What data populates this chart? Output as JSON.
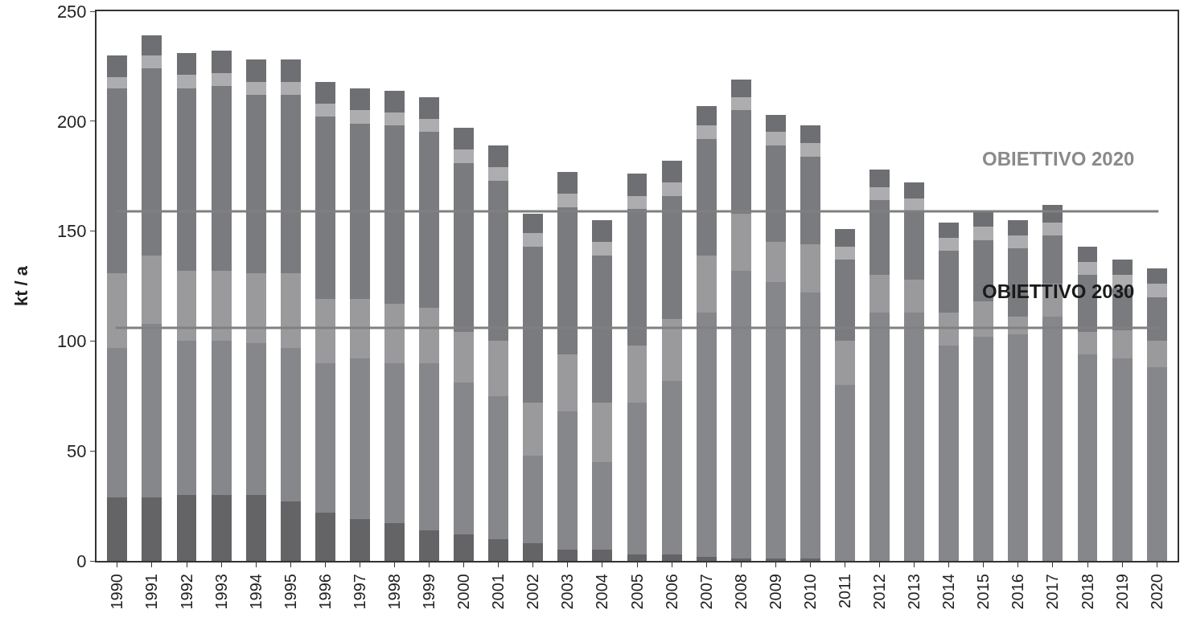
{
  "chart_data": {
    "type": "bar",
    "stacked": true,
    "ylabel": "kt / a",
    "categories": [
      "1990",
      "1991",
      "1992",
      "1993",
      "1994",
      "1995",
      "1996",
      "1997",
      "1998",
      "1999",
      "2000",
      "2001",
      "2002",
      "2003",
      "2004",
      "2005",
      "2006",
      "2007",
      "2008",
      "2009",
      "2010",
      "2011",
      "2012",
      "2013",
      "2014",
      "2015",
      "2016",
      "2017",
      "2018",
      "2019",
      "2020"
    ],
    "series": [
      {
        "color": "#646466",
        "values": [
          29,
          29,
          30,
          30,
          30,
          27,
          22,
          19,
          17,
          14,
          12,
          10,
          8,
          5,
          5,
          3,
          3,
          2,
          1,
          1,
          1,
          0,
          0,
          0,
          0,
          0,
          0,
          0,
          0,
          0,
          0
        ]
      },
      {
        "color": "#86878b",
        "values": [
          68,
          79,
          70,
          70,
          69,
          70,
          68,
          73,
          73,
          76,
          69,
          65,
          40,
          63,
          40,
          69,
          79,
          111,
          131,
          126,
          121,
          80,
          113,
          113,
          98,
          102,
          103,
          111,
          94,
          92,
          88
        ]
      },
      {
        "color": "#9a9a9d",
        "values": [
          34,
          31,
          32,
          32,
          32,
          34,
          29,
          27,
          27,
          25,
          23,
          25,
          24,
          26,
          27,
          26,
          28,
          26,
          26,
          18,
          22,
          20,
          17,
          15,
          15,
          16,
          8,
          15,
          10,
          13,
          12
        ]
      },
      {
        "color": "#7a7b7e",
        "values": [
          84,
          85,
          83,
          84,
          81,
          81,
          83,
          80,
          81,
          80,
          77,
          73,
          71,
          67,
          67,
          62,
          56,
          53,
          47,
          44,
          40,
          37,
          34,
          31,
          28,
          28,
          31,
          22,
          26,
          19,
          20
        ]
      },
      {
        "color": "#adadaf",
        "values": [
          5,
          6,
          6,
          6,
          6,
          6,
          6,
          6,
          6,
          6,
          6,
          6,
          6,
          6,
          6,
          6,
          6,
          6,
          6,
          6,
          6,
          6,
          6,
          6,
          6,
          6,
          6,
          6,
          6,
          6,
          6
        ]
      },
      {
        "color": "#6e6f72",
        "values": [
          10,
          9,
          10,
          10,
          10,
          10,
          10,
          10,
          10,
          10,
          10,
          10,
          9,
          10,
          10,
          10,
          10,
          9,
          8,
          8,
          8,
          8,
          8,
          7,
          7,
          7,
          7,
          8,
          7,
          7,
          7
        ]
      }
    ],
    "ylim": [
      0,
      250
    ],
    "yticks": [
      0,
      50,
      100,
      150,
      200,
      250
    ],
    "grid": false,
    "ref_lines": [
      {
        "axis": "y",
        "value": 159,
        "label": "OBIETTIVO 2020",
        "color": "#808080"
      },
      {
        "axis": "y",
        "value": 106,
        "label": "OBIETTIVO 2030",
        "color": "#808080"
      }
    ]
  }
}
